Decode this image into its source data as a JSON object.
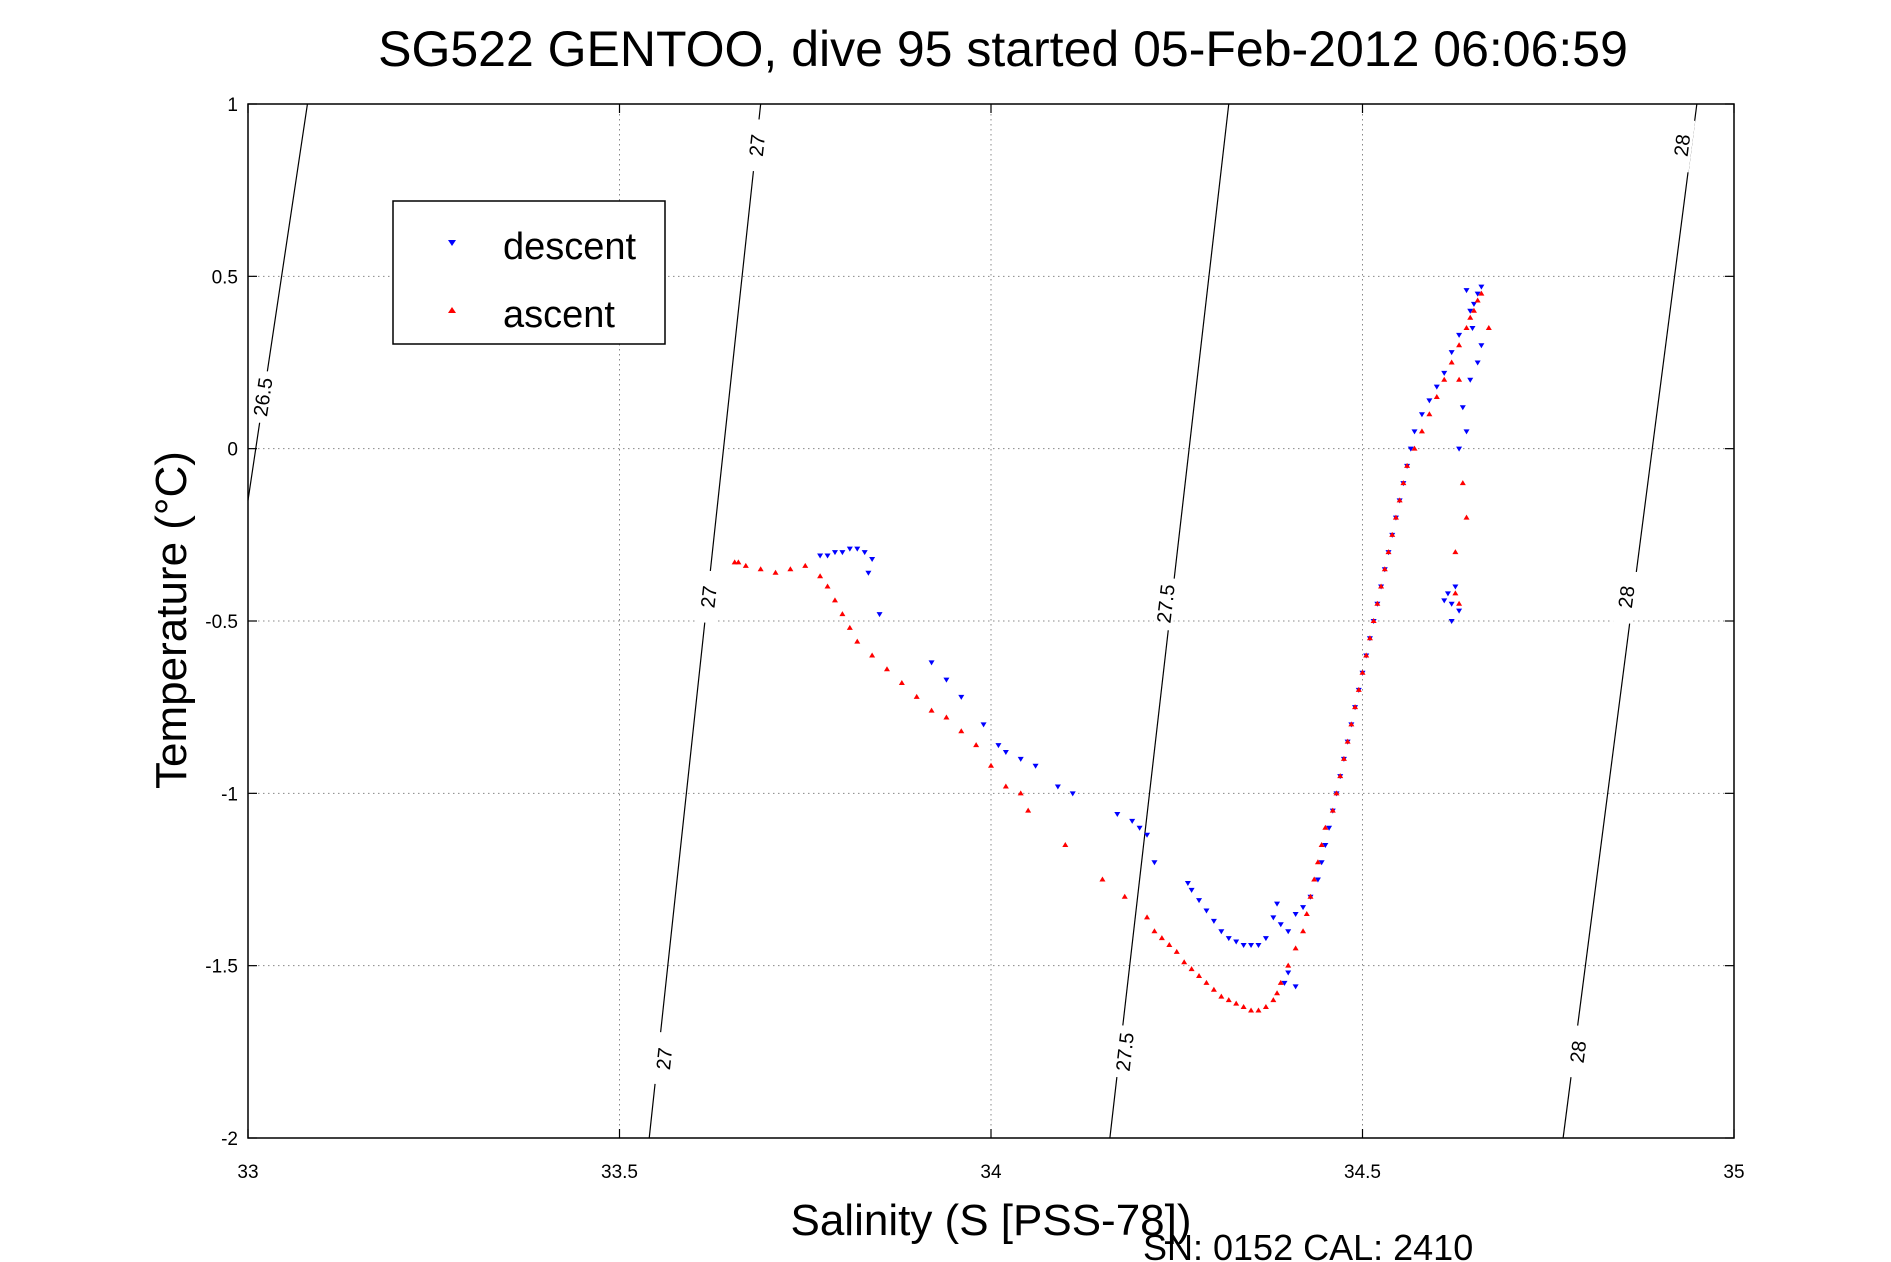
{
  "chart_data": {
    "type": "scatter",
    "title": "SG522 GENTOO, dive 95 started 05-Feb-2012 06:06:59",
    "xlabel": "Salinity (S [PSS-78])",
    "ylabel": "Temperature (°C)",
    "xlim": [
      33,
      35
    ],
    "ylim": [
      -2,
      1
    ],
    "xticks": [
      "33",
      "33.5",
      "34",
      "34.5",
      "35"
    ],
    "yticks": [
      "-2",
      "-1.5",
      "-1",
      "-0.5",
      "0",
      "0.5",
      "1"
    ],
    "grid": true,
    "legend_position": "top-left",
    "footer": "SN: 0152  CAL: 2410",
    "contours": [
      {
        "label": "26.5",
        "points": [
          [
            33.0,
            -0.15
          ],
          [
            33.08,
            1.0
          ]
        ],
        "labels_at": [
          [
            33.02,
            0.15
          ]
        ]
      },
      {
        "label": "27",
        "points": [
          [
            33.54,
            -2.0
          ],
          [
            33.69,
            1.0
          ]
        ],
        "labels_at": [
          [
            33.56,
            -1.77
          ],
          [
            33.62,
            -0.43
          ],
          [
            33.685,
            0.88
          ]
        ]
      },
      {
        "label": "27.5",
        "points": [
          [
            34.16,
            -2.0
          ],
          [
            34.32,
            1.0
          ]
        ],
        "labels_at": [
          [
            34.18,
            -1.75
          ],
          [
            34.235,
            -0.45
          ]
        ]
      },
      {
        "label": "28",
        "points": [
          [
            34.77,
            -2.0
          ],
          [
            34.95,
            1.0
          ]
        ],
        "labels_at": [
          [
            34.79,
            -1.75
          ],
          [
            34.855,
            -0.43
          ],
          [
            34.93,
            0.88
          ]
        ]
      }
    ],
    "series": [
      {
        "name": "descent",
        "color": "#0000ff",
        "marker": "triangle-down",
        "points": [
          [
            34.66,
            0.47
          ],
          [
            34.655,
            0.45
          ],
          [
            34.65,
            0.42
          ],
          [
            34.645,
            0.4
          ],
          [
            34.64,
            0.46
          ],
          [
            34.648,
            0.35
          ],
          [
            34.66,
            0.3
          ],
          [
            34.655,
            0.25
          ],
          [
            34.645,
            0.2
          ],
          [
            34.63,
            0.33
          ],
          [
            34.62,
            0.28
          ],
          [
            34.61,
            0.22
          ],
          [
            34.6,
            0.18
          ],
          [
            34.59,
            0.14
          ],
          [
            34.58,
            0.1
          ],
          [
            34.57,
            0.05
          ],
          [
            34.565,
            0.0
          ],
          [
            34.56,
            -0.05
          ],
          [
            34.555,
            -0.1
          ],
          [
            34.55,
            -0.15
          ],
          [
            34.545,
            -0.2
          ],
          [
            34.54,
            -0.25
          ],
          [
            34.535,
            -0.3
          ],
          [
            34.53,
            -0.35
          ],
          [
            34.525,
            -0.4
          ],
          [
            34.52,
            -0.45
          ],
          [
            34.515,
            -0.5
          ],
          [
            34.51,
            -0.55
          ],
          [
            34.505,
            -0.6
          ],
          [
            34.5,
            -0.65
          ],
          [
            34.495,
            -0.7
          ],
          [
            34.49,
            -0.75
          ],
          [
            34.485,
            -0.8
          ],
          [
            34.48,
            -0.85
          ],
          [
            34.475,
            -0.9
          ],
          [
            34.47,
            -0.95
          ],
          [
            34.465,
            -1.0
          ],
          [
            34.46,
            -1.05
          ],
          [
            34.455,
            -1.1
          ],
          [
            34.45,
            -1.15
          ],
          [
            34.445,
            -1.2
          ],
          [
            34.44,
            -1.25
          ],
          [
            34.43,
            -1.3
          ],
          [
            34.42,
            -1.33
          ],
          [
            34.41,
            -1.35
          ],
          [
            34.4,
            -1.4
          ],
          [
            34.39,
            -1.38
          ],
          [
            34.385,
            -1.32
          ],
          [
            34.38,
            -1.36
          ],
          [
            34.37,
            -1.42
          ],
          [
            34.36,
            -1.44
          ],
          [
            34.35,
            -1.44
          ],
          [
            34.34,
            -1.44
          ],
          [
            34.33,
            -1.43
          ],
          [
            34.32,
            -1.42
          ],
          [
            34.31,
            -1.4
          ],
          [
            34.3,
            -1.37
          ],
          [
            34.29,
            -1.34
          ],
          [
            34.28,
            -1.31
          ],
          [
            34.27,
            -1.28
          ],
          [
            34.265,
            -1.26
          ],
          [
            34.4,
            -1.52
          ],
          [
            34.41,
            -1.56
          ],
          [
            34.395,
            -1.55
          ],
          [
            34.22,
            -1.2
          ],
          [
            34.21,
            -1.12
          ],
          [
            34.2,
            -1.1
          ],
          [
            34.19,
            -1.08
          ],
          [
            34.17,
            -1.06
          ],
          [
            34.11,
            -1.0
          ],
          [
            34.09,
            -0.98
          ],
          [
            34.06,
            -0.92
          ],
          [
            34.04,
            -0.9
          ],
          [
            34.02,
            -0.88
          ],
          [
            34.01,
            -0.86
          ],
          [
            33.99,
            -0.8
          ],
          [
            33.96,
            -0.72
          ],
          [
            33.94,
            -0.67
          ],
          [
            33.92,
            -0.62
          ],
          [
            33.85,
            -0.48
          ],
          [
            33.84,
            -0.32
          ],
          [
            33.83,
            -0.3
          ],
          [
            33.82,
            -0.29
          ],
          [
            33.81,
            -0.29
          ],
          [
            33.8,
            -0.3
          ],
          [
            33.79,
            -0.3
          ],
          [
            33.78,
            -0.31
          ],
          [
            33.77,
            -0.31
          ],
          [
            33.835,
            -0.36
          ],
          [
            34.62,
            -0.45
          ],
          [
            34.615,
            -0.42
          ],
          [
            34.61,
            -0.44
          ],
          [
            34.62,
            -0.5
          ],
          [
            34.63,
            -0.47
          ],
          [
            34.625,
            -0.4
          ],
          [
            34.63,
            0.0
          ],
          [
            34.64,
            0.05
          ],
          [
            34.635,
            0.12
          ]
        ]
      },
      {
        "name": "ascent",
        "color": "#ff0000",
        "marker": "triangle-up",
        "points": [
          [
            34.66,
            0.45
          ],
          [
            34.655,
            0.43
          ],
          [
            34.65,
            0.4
          ],
          [
            34.645,
            0.38
          ],
          [
            34.64,
            0.35
          ],
          [
            34.63,
            0.3
          ],
          [
            34.62,
            0.25
          ],
          [
            34.61,
            0.2
          ],
          [
            34.6,
            0.15
          ],
          [
            34.59,
            0.1
          ],
          [
            34.58,
            0.05
          ],
          [
            34.57,
            0.0
          ],
          [
            34.56,
            -0.05
          ],
          [
            34.555,
            -0.1
          ],
          [
            34.55,
            -0.15
          ],
          [
            34.545,
            -0.2
          ],
          [
            34.54,
            -0.25
          ],
          [
            34.535,
            -0.3
          ],
          [
            34.53,
            -0.35
          ],
          [
            34.525,
            -0.4
          ],
          [
            34.52,
            -0.45
          ],
          [
            34.515,
            -0.5
          ],
          [
            34.51,
            -0.55
          ],
          [
            34.505,
            -0.6
          ],
          [
            34.5,
            -0.65
          ],
          [
            34.495,
            -0.7
          ],
          [
            34.49,
            -0.75
          ],
          [
            34.485,
            -0.8
          ],
          [
            34.48,
            -0.85
          ],
          [
            34.475,
            -0.9
          ],
          [
            34.47,
            -0.95
          ],
          [
            34.465,
            -1.0
          ],
          [
            34.46,
            -1.05
          ],
          [
            34.45,
            -1.1
          ],
          [
            34.445,
            -1.15
          ],
          [
            34.44,
            -1.2
          ],
          [
            34.435,
            -1.25
          ],
          [
            34.43,
            -1.3
          ],
          [
            34.425,
            -1.35
          ],
          [
            34.42,
            -1.4
          ],
          [
            34.41,
            -1.45
          ],
          [
            34.4,
            -1.5
          ],
          [
            34.39,
            -1.55
          ],
          [
            34.385,
            -1.58
          ],
          [
            34.38,
            -1.6
          ],
          [
            34.37,
            -1.62
          ],
          [
            34.36,
            -1.63
          ],
          [
            34.35,
            -1.63
          ],
          [
            34.34,
            -1.62
          ],
          [
            34.33,
            -1.61
          ],
          [
            34.32,
            -1.6
          ],
          [
            34.31,
            -1.59
          ],
          [
            34.3,
            -1.57
          ],
          [
            34.29,
            -1.55
          ],
          [
            34.28,
            -1.53
          ],
          [
            34.27,
            -1.51
          ],
          [
            34.26,
            -1.49
          ],
          [
            34.25,
            -1.46
          ],
          [
            34.24,
            -1.44
          ],
          [
            34.23,
            -1.42
          ],
          [
            34.22,
            -1.4
          ],
          [
            34.21,
            -1.36
          ],
          [
            34.18,
            -1.3
          ],
          [
            34.15,
            -1.25
          ],
          [
            34.1,
            -1.15
          ],
          [
            34.05,
            -1.05
          ],
          [
            34.04,
            -1.0
          ],
          [
            34.02,
            -0.98
          ],
          [
            34.0,
            -0.92
          ],
          [
            33.98,
            -0.86
          ],
          [
            33.96,
            -0.82
          ],
          [
            33.94,
            -0.78
          ],
          [
            33.92,
            -0.76
          ],
          [
            33.9,
            -0.72
          ],
          [
            33.88,
            -0.68
          ],
          [
            33.86,
            -0.64
          ],
          [
            33.84,
            -0.6
          ],
          [
            33.82,
            -0.56
          ],
          [
            33.81,
            -0.52
          ],
          [
            33.8,
            -0.48
          ],
          [
            33.79,
            -0.44
          ],
          [
            33.78,
            -0.4
          ],
          [
            33.77,
            -0.37
          ],
          [
            33.75,
            -0.34
          ],
          [
            33.73,
            -0.35
          ],
          [
            33.71,
            -0.36
          ],
          [
            33.69,
            -0.35
          ],
          [
            33.67,
            -0.34
          ],
          [
            33.66,
            -0.33
          ],
          [
            33.655,
            -0.33
          ],
          [
            34.63,
            0.2
          ],
          [
            34.635,
            -0.1
          ],
          [
            34.64,
            -0.2
          ],
          [
            34.625,
            -0.3
          ],
          [
            34.67,
            0.35
          ],
          [
            34.63,
            -0.45
          ],
          [
            34.625,
            -0.42
          ]
        ]
      }
    ]
  }
}
